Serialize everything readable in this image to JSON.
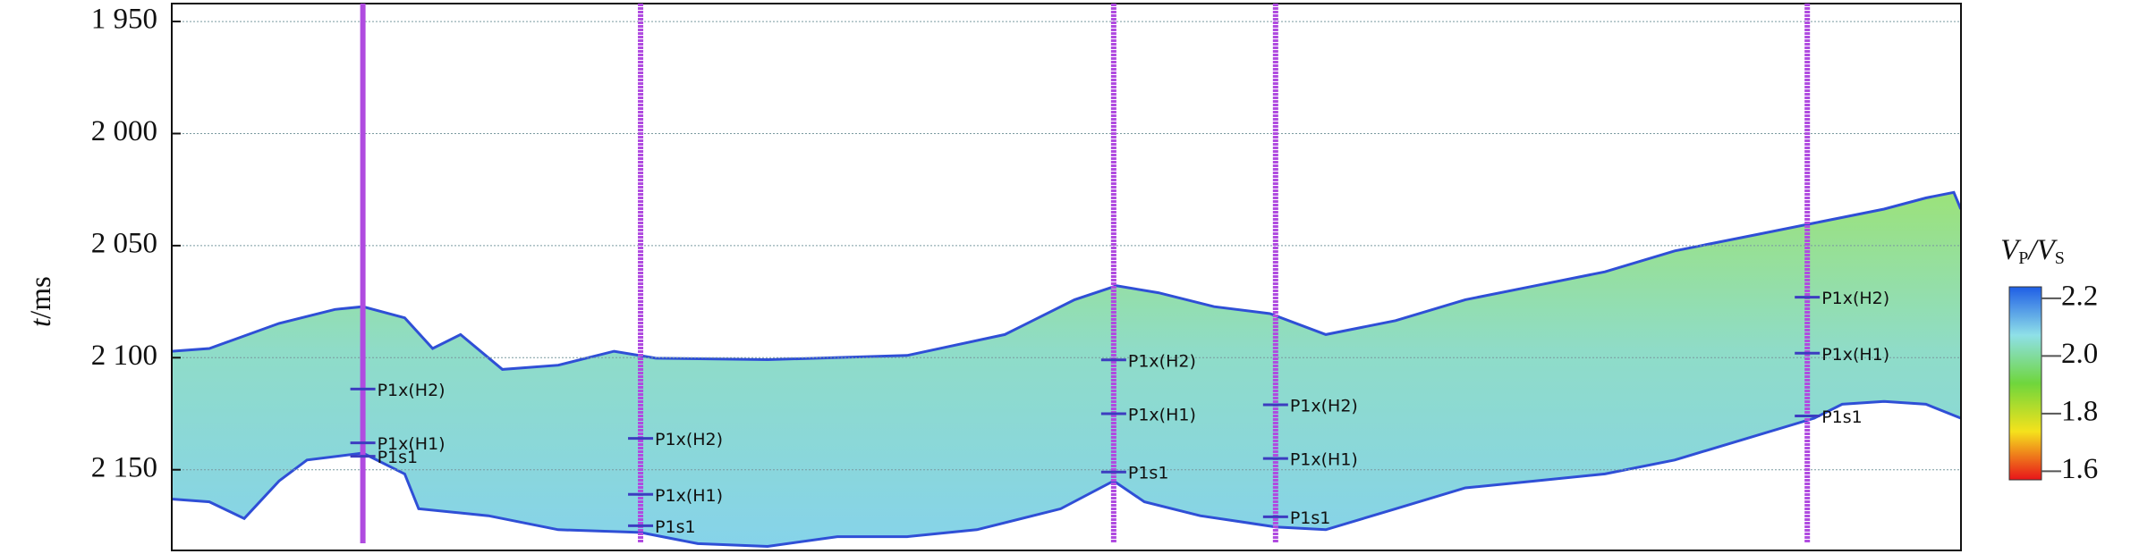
{
  "chart_data": {
    "type": "seismic-section",
    "y_label": [
      "t",
      "/ms"
    ],
    "ylim": [
      1942,
      2186
    ],
    "yticks": [
      {
        "value": 1950,
        "label": "1 950"
      },
      {
        "value": 2000,
        "label": "2 000"
      },
      {
        "value": 2050,
        "label": "2 050"
      },
      {
        "value": 2100,
        "label": "2 100"
      },
      {
        "value": 2150,
        "label": "2 150"
      }
    ],
    "grid": true,
    "wells": [
      {
        "markers": [
          {
            "name": "P1x(H2)",
            "time": 2114
          },
          {
            "name": "P1x(H1)",
            "time": 2138
          },
          {
            "name": "P1s1",
            "time": 2144
          }
        ]
      },
      {
        "markers": [
          {
            "name": "P1x(H2)",
            "time": 2136
          },
          {
            "name": "P1x(H1)",
            "time": 2161
          },
          {
            "name": "P1s1",
            "time": 2175
          }
        ]
      },
      {
        "markers": [
          {
            "name": "P1x(H2)",
            "time": 2101
          },
          {
            "name": "P1x(H1)",
            "time": 2125
          },
          {
            "name": "P1s1",
            "time": 2151
          }
        ]
      },
      {
        "markers": [
          {
            "name": "P1x(H2)",
            "time": 2121
          },
          {
            "name": "P1x(H1)",
            "time": 2145
          },
          {
            "name": "P1s1",
            "time": 2171
          }
        ]
      },
      {
        "markers": [
          {
            "name": "P1x(H2)",
            "time": 2073
          },
          {
            "name": "P1x(H1)",
            "time": 2098
          },
          {
            "name": "P1s1",
            "time": 2126
          }
        ]
      }
    ],
    "well_color": "#b04be0",
    "marker_color": "#3c3cc0",
    "boundary_color": "#2f4fd6",
    "colorbar_label": [
      "V",
      "P",
      "/V",
      "S"
    ],
    "clim": [
      1.57,
      2.24
    ],
    "cticks": [
      1.6,
      1.8,
      {
        "value": 2,
        "label": "2.0"
      },
      2.2
    ],
    "colormap": [
      "#e8141a",
      "#f5e21c",
      "#6fd63c",
      "#8fe0e8",
      "#1f5ee6"
    ]
  }
}
